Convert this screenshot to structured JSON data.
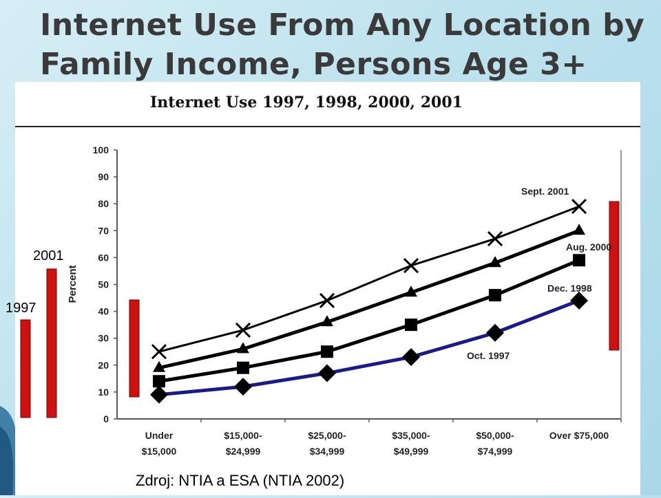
{
  "slide": {
    "title_line1": "Internet Use From Any Location by",
    "title_line2": "Family Income, Persons Age 3+",
    "label_2001": "2001",
    "label_1997": "1997",
    "source": "Zdroj: NTIA a ESA (NTIA 2002)"
  },
  "colors": {
    "bars": "#cc1111",
    "oct1997_line": "#1a1a8a",
    "other_lines": "#000000"
  },
  "chart_data": {
    "type": "line",
    "title": "Internet Use 1997, 1998, 2000, 2001",
    "ylabel": "Percent",
    "xlabel": "",
    "ylim": [
      0,
      100
    ],
    "yticks": [
      0,
      10,
      20,
      30,
      40,
      50,
      60,
      70,
      80,
      90,
      100
    ],
    "grid": false,
    "categories": [
      [
        "Under",
        "$15,000"
      ],
      [
        "$15,000-",
        "$24,999"
      ],
      [
        "$25,000-",
        "$34,999"
      ],
      [
        "$35,000-",
        "$49,999"
      ],
      [
        "$50,000-",
        "$74,999"
      ],
      [
        "Over $75,000",
        ""
      ]
    ],
    "series": [
      {
        "name": "Sept. 2001",
        "marker": "x",
        "values": [
          25,
          33,
          44,
          57,
          67,
          79
        ]
      },
      {
        "name": "Aug. 2000",
        "marker": "triangle",
        "values": [
          19,
          26,
          36,
          47,
          58,
          70
        ]
      },
      {
        "name": "Dec. 1998",
        "marker": "square",
        "values": [
          14,
          19,
          25,
          35,
          46,
          59
        ]
      },
      {
        "name": "Oct. 1997",
        "marker": "diamond",
        "values": [
          9,
          12,
          17,
          23,
          32,
          44
        ]
      }
    ]
  }
}
